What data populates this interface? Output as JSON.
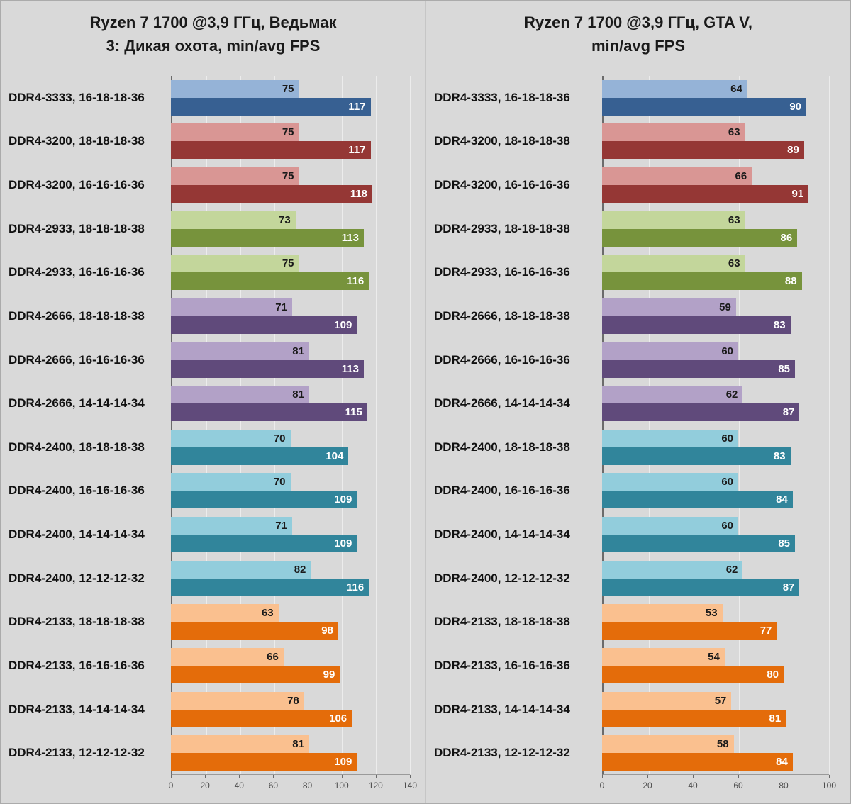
{
  "page": {
    "background": "#D9D9D9",
    "plot_background": "#D9D9D9",
    "gridline_color": "#ECECEC",
    "axis_color": "#6b6b6b"
  },
  "palette": {
    "3333": {
      "min": "#95B3D7",
      "avg": "#376092"
    },
    "3200": {
      "min": "#D99694",
      "avg": "#953735"
    },
    "2933": {
      "min": "#C3D69B",
      "avg": "#77933C"
    },
    "2666": {
      "min": "#B2A1C7",
      "avg": "#604A7B"
    },
    "2400": {
      "min": "#92CDDC",
      "avg": "#31859B"
    },
    "2133": {
      "min": "#FAC08F",
      "avg": "#E46C0A"
    }
  },
  "chart_data": [
    {
      "type": "bar",
      "orientation": "horizontal",
      "title": "Ryzen 7 1700 @3,9 ГГц, Ведьмак 3: Дикая охота, min/avg FPS",
      "title_lines": [
        "Ryzen 7 1700 @3,9 ГГц, Ведьмак",
        "3: Дикая охота, min/avg FPS"
      ],
      "series_names": [
        "min FPS",
        "avg FPS"
      ],
      "xlabel": "",
      "ylabel": "",
      "xlim": [
        0,
        140
      ],
      "xticks": [
        0,
        20,
        40,
        60,
        80,
        100,
        120,
        140
      ],
      "grid": true,
      "legend": "none",
      "rows": [
        {
          "label": "DDR4-3333, 16-18-18-36",
          "min": 75,
          "avg": 117,
          "group": "3333"
        },
        {
          "label": "DDR4-3200, 18-18-18-38",
          "min": 75,
          "avg": 117,
          "group": "3200"
        },
        {
          "label": "DDR4-3200, 16-16-16-36",
          "min": 75,
          "avg": 118,
          "group": "3200"
        },
        {
          "label": "DDR4-2933, 18-18-18-38",
          "min": 73,
          "avg": 113,
          "group": "2933"
        },
        {
          "label": "DDR4-2933, 16-16-16-36",
          "min": 75,
          "avg": 116,
          "group": "2933"
        },
        {
          "label": "DDR4-2666, 18-18-18-38",
          "min": 71,
          "avg": 109,
          "group": "2666"
        },
        {
          "label": "DDR4-2666, 16-16-16-36",
          "min": 81,
          "avg": 113,
          "group": "2666"
        },
        {
          "label": "DDR4-2666, 14-14-14-34",
          "min": 81,
          "avg": 115,
          "group": "2666"
        },
        {
          "label": "DDR4-2400, 18-18-18-38",
          "min": 70,
          "avg": 104,
          "group": "2400"
        },
        {
          "label": "DDR4-2400, 16-16-16-36",
          "min": 70,
          "avg": 109,
          "group": "2400"
        },
        {
          "label": "DDR4-2400, 14-14-14-34",
          "min": 71,
          "avg": 109,
          "group": "2400"
        },
        {
          "label": "DDR4-2400, 12-12-12-32",
          "min": 82,
          "avg": 116,
          "group": "2400"
        },
        {
          "label": "DDR4-2133, 18-18-18-38",
          "min": 63,
          "avg": 98,
          "group": "2133"
        },
        {
          "label": "DDR4-2133, 16-16-16-36",
          "min": 66,
          "avg": 99,
          "group": "2133"
        },
        {
          "label": "DDR4-2133, 14-14-14-34",
          "min": 78,
          "avg": 106,
          "group": "2133"
        },
        {
          "label": "DDR4-2133, 12-12-12-32",
          "min": 81,
          "avg": 109,
          "group": "2133"
        }
      ]
    },
    {
      "type": "bar",
      "orientation": "horizontal",
      "title": "Ryzen 7 1700 @3,9 ГГц, GTA V, min/avg FPS",
      "title_lines": [
        "Ryzen 7 1700 @3,9 ГГц, GTA V,",
        "min/avg FPS"
      ],
      "series_names": [
        "min FPS",
        "avg FPS"
      ],
      "xlabel": "",
      "ylabel": "",
      "xlim": [
        0,
        100
      ],
      "xticks": [
        0,
        20,
        40,
        60,
        80,
        100
      ],
      "grid": true,
      "legend": "none",
      "rows": [
        {
          "label": "DDR4-3333, 16-18-18-36",
          "min": 64,
          "avg": 90,
          "group": "3333"
        },
        {
          "label": "DDR4-3200, 18-18-18-38",
          "min": 63,
          "avg": 89,
          "group": "3200"
        },
        {
          "label": "DDR4-3200, 16-16-16-36",
          "min": 66,
          "avg": 91,
          "group": "3200"
        },
        {
          "label": "DDR4-2933, 18-18-18-38",
          "min": 63,
          "avg": 86,
          "group": "2933"
        },
        {
          "label": "DDR4-2933, 16-16-16-36",
          "min": 63,
          "avg": 88,
          "group": "2933"
        },
        {
          "label": "DDR4-2666, 18-18-18-38",
          "min": 59,
          "avg": 83,
          "group": "2666"
        },
        {
          "label": "DDR4-2666, 16-16-16-36",
          "min": 60,
          "avg": 85,
          "group": "2666"
        },
        {
          "label": "DDR4-2666, 14-14-14-34",
          "min": 62,
          "avg": 87,
          "group": "2666"
        },
        {
          "label": "DDR4-2400, 18-18-18-38",
          "min": 60,
          "avg": 83,
          "group": "2400"
        },
        {
          "label": "DDR4-2400, 16-16-16-36",
          "min": 60,
          "avg": 84,
          "group": "2400"
        },
        {
          "label": "DDR4-2400, 14-14-14-34",
          "min": 60,
          "avg": 85,
          "group": "2400"
        },
        {
          "label": "DDR4-2400, 12-12-12-32",
          "min": 62,
          "avg": 87,
          "group": "2400"
        },
        {
          "label": "DDR4-2133, 18-18-18-38",
          "min": 53,
          "avg": 77,
          "group": "2133"
        },
        {
          "label": "DDR4-2133, 16-16-16-36",
          "min": 54,
          "avg": 80,
          "group": "2133"
        },
        {
          "label": "DDR4-2133, 14-14-14-34",
          "min": 57,
          "avg": 81,
          "group": "2133"
        },
        {
          "label": "DDR4-2133, 12-12-12-32",
          "min": 58,
          "avg": 84,
          "group": "2133"
        }
      ]
    }
  ]
}
